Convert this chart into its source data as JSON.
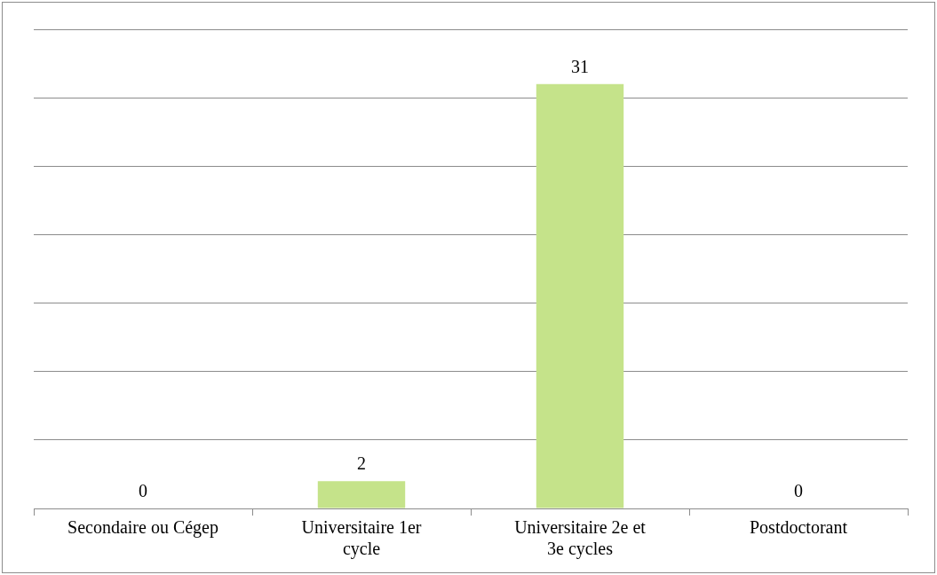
{
  "chart_data": {
    "type": "bar",
    "categories": [
      "Secondaire ou Cégep",
      "Universitaire 1er cycle",
      "Universitaire 2e et 3e cycles",
      "Postdoctorant"
    ],
    "values": [
      0,
      2,
      31,
      0
    ],
    "color": "#c5e38a",
    "ylim": [
      0,
      35
    ],
    "yticks": [
      {
        "value": 0,
        "label": null
      },
      {
        "value": 5,
        "label": null
      },
      {
        "value": 10,
        "label": null
      },
      {
        "value": 15,
        "label": null
      },
      {
        "value": 20,
        "label": null
      },
      {
        "value": 25,
        "label": null
      },
      {
        "value": 30,
        "label": null
      },
      {
        "value": 35,
        "label": null
      }
    ],
    "grid": "y",
    "legend": false,
    "tick_labels": "x",
    "data_labels": true
  }
}
